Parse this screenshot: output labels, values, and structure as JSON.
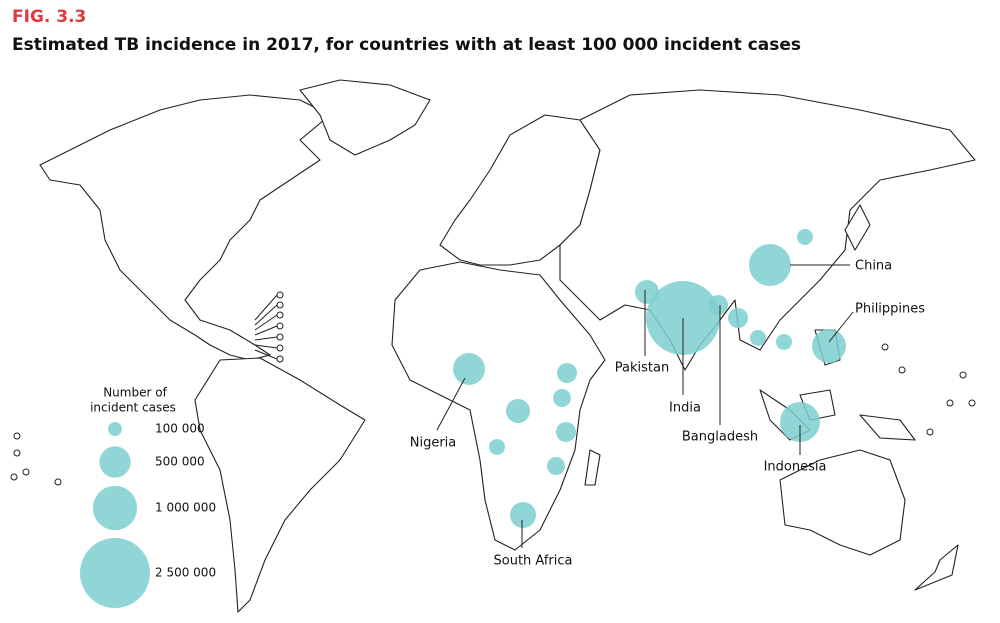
{
  "figure": "FIG. 3.3",
  "title": "Estimated TB incidence in 2017, for countries with at least 100 000 incident cases",
  "legend": {
    "title": [
      "Number of",
      "incident cases"
    ],
    "items": [
      {
        "value": 100000,
        "label": "100 000"
      },
      {
        "value": 500000,
        "label": "500 000"
      },
      {
        "value": 1000000,
        "label": "1 000 000"
      },
      {
        "value": 2500000,
        "label": "2 500 000"
      }
    ]
  },
  "countries": [
    "China",
    "Philippines",
    "Pakistan",
    "India",
    "Bangladesh",
    "Indonesia",
    "Nigeria",
    "South Africa"
  ]
}
